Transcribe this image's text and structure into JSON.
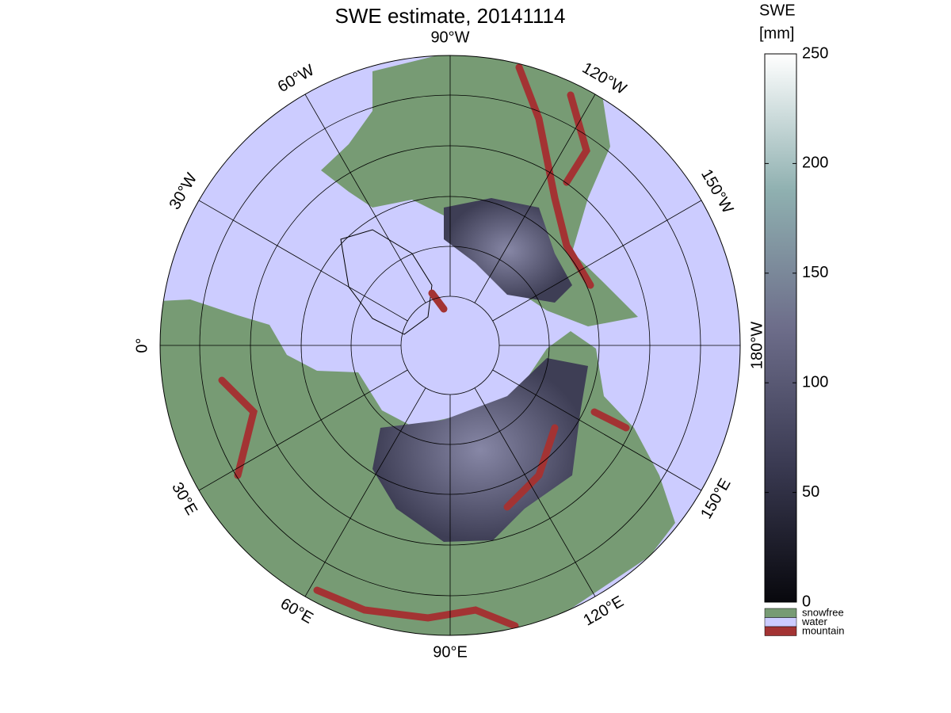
{
  "title": "SWE estimate, 20141114",
  "longitude_labels": [
    "90°W",
    "120°W",
    "150°W",
    "180°W",
    "150°E",
    "120°E",
    "90°E",
    "60°E",
    "30°E",
    "0°",
    "30°W",
    "60°W"
  ],
  "colorbar": {
    "title_lines": [
      "SWE",
      "[mm]"
    ],
    "range": [
      0,
      250
    ],
    "ticks": [
      0,
      50,
      100,
      150,
      200,
      250
    ]
  },
  "legend": [
    {
      "name": "snowfree",
      "color": "#779b74"
    },
    {
      "name": "water",
      "color": "#ccccff"
    },
    {
      "name": "mountain",
      "color": "#a33333"
    }
  ]
}
